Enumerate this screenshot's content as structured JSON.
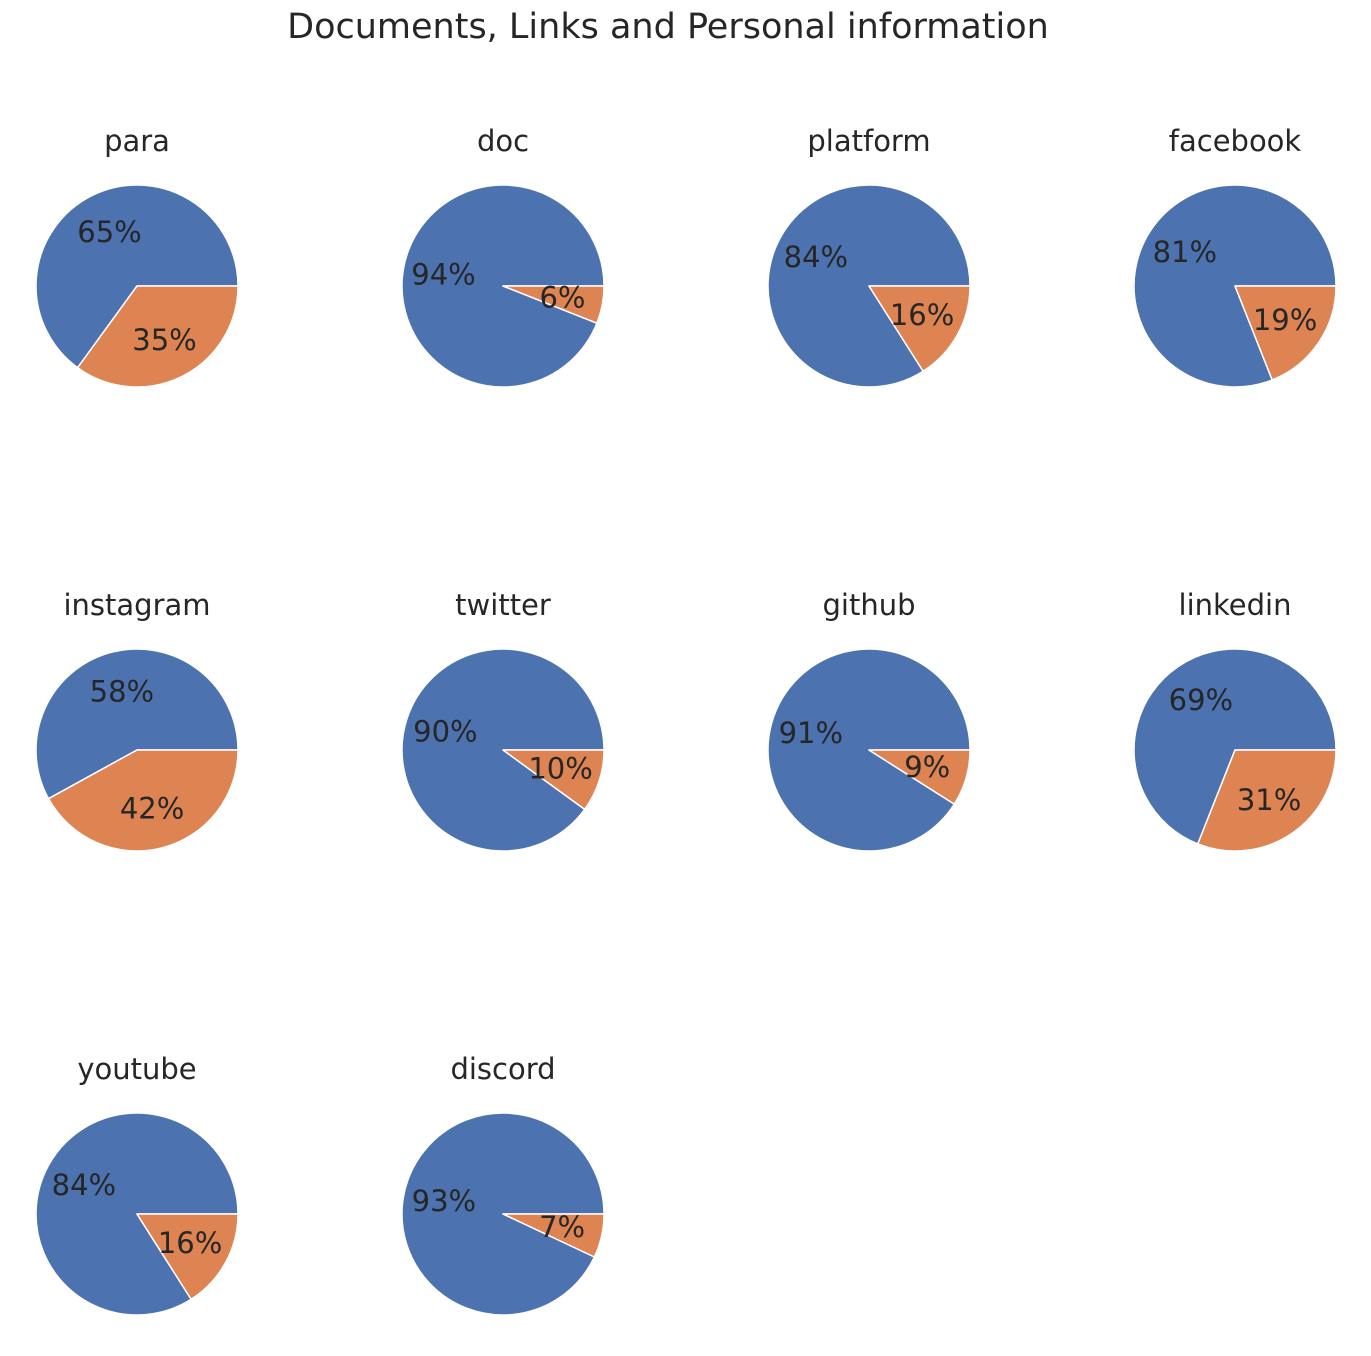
{
  "chart_data": {
    "type": "pie",
    "title": "Documents, Links and Personal information",
    "colors": [
      "#4c72b0",
      "#dd8452"
    ],
    "layout": "3 rows x 4 columns",
    "start_angle": 0,
    "direction": "counterclockwise",
    "charts": [
      {
        "title": "para",
        "values": [
          65,
          35
        ],
        "labels": [
          "65%",
          "35%"
        ]
      },
      {
        "title": "doc",
        "values": [
          94,
          6
        ],
        "labels": [
          "94%",
          "6%"
        ]
      },
      {
        "title": "platform",
        "values": [
          84,
          16
        ],
        "labels": [
          "84%",
          "16%"
        ]
      },
      {
        "title": "facebook",
        "values": [
          81,
          19
        ],
        "labels": [
          "81%",
          "19%"
        ]
      },
      {
        "title": "instagram",
        "values": [
          58,
          42
        ],
        "labels": [
          "58%",
          "42%"
        ]
      },
      {
        "title": "twitter",
        "values": [
          90,
          10
        ],
        "labels": [
          "90%",
          "10%"
        ]
      },
      {
        "title": "github",
        "values": [
          91,
          9
        ],
        "labels": [
          "91%",
          "9%"
        ]
      },
      {
        "title": "linkedin",
        "values": [
          69,
          31
        ],
        "labels": [
          "69%",
          "31%"
        ]
      },
      {
        "title": "youtube",
        "values": [
          84,
          16
        ],
        "labels": [
          "84%",
          "16%"
        ]
      },
      {
        "title": "discord",
        "values": [
          93,
          7
        ],
        "labels": [
          "93%",
          "7%"
        ]
      }
    ]
  }
}
